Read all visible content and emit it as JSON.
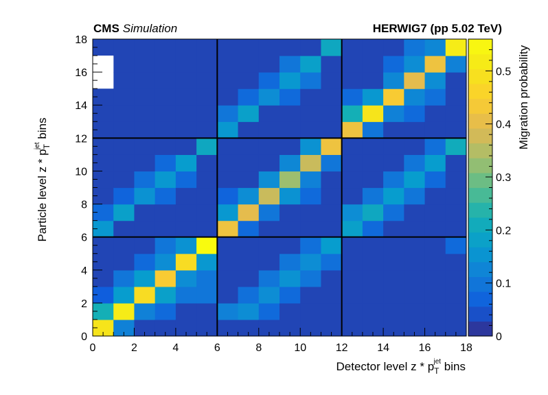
{
  "chart_data": {
    "type": "heatmap",
    "header_left_bold": "CMS",
    "header_left_italic": "Simulation",
    "header_right": "HERWIG7 (pp 5.02 TeV)",
    "xlabel": {
      "prefix": "Detector level z * p",
      "sub": "T",
      "sup": "jet",
      "suffix": " bins"
    },
    "ylabel": {
      "prefix": "Particle level z * p",
      "sub": "T",
      "sup": "jet",
      "suffix": " bins"
    },
    "colorbar_label": "Migration probability",
    "xlim": [
      0,
      18
    ],
    "ylim": [
      0,
      18
    ],
    "zlim": [
      0,
      0.56
    ],
    "xticks": [
      "0",
      "2",
      "4",
      "6",
      "8",
      "10",
      "12",
      "14",
      "16",
      "18"
    ],
    "yticks": [
      "0",
      "2",
      "4",
      "6",
      "8",
      "10",
      "12",
      "14",
      "16",
      "18"
    ],
    "zticks": [
      "0",
      "0.1",
      "0.2",
      "0.3",
      "0.4",
      "0.5"
    ],
    "block_boundaries": [
      6,
      12
    ],
    "empty_cells": [
      [
        0,
        15
      ],
      [
        0,
        16
      ]
    ],
    "background_value": 0.03,
    "cells": [
      [
        0,
        0,
        0.5
      ],
      [
        1,
        0,
        0.12
      ],
      [
        0,
        1,
        0.22
      ],
      [
        1,
        1,
        0.52
      ],
      [
        2,
        1,
        0.12
      ],
      [
        3,
        1,
        0.08
      ],
      [
        0,
        2,
        0.06
      ],
      [
        1,
        2,
        0.17
      ],
      [
        2,
        2,
        0.48
      ],
      [
        3,
        2,
        0.18
      ],
      [
        4,
        2,
        0.1
      ],
      [
        5,
        2,
        0.1
      ],
      [
        1,
        3,
        0.1
      ],
      [
        2,
        3,
        0.17
      ],
      [
        3,
        3,
        0.44
      ],
      [
        4,
        3,
        0.14
      ],
      [
        5,
        3,
        0.1
      ],
      [
        2,
        4,
        0.08
      ],
      [
        3,
        4,
        0.14
      ],
      [
        4,
        4,
        0.48
      ],
      [
        5,
        4,
        0.16
      ],
      [
        3,
        5,
        0.1
      ],
      [
        4,
        5,
        0.15
      ],
      [
        5,
        5,
        0.56
      ],
      [
        6,
        1,
        0.12
      ],
      [
        7,
        1,
        0.14
      ],
      [
        8,
        1,
        0.08
      ],
      [
        7,
        2,
        0.09
      ],
      [
        8,
        2,
        0.14
      ],
      [
        9,
        2,
        0.08
      ],
      [
        8,
        3,
        0.1
      ],
      [
        9,
        3,
        0.15
      ],
      [
        10,
        3,
        0.1
      ],
      [
        9,
        4,
        0.1
      ],
      [
        10,
        4,
        0.14
      ],
      [
        11,
        4,
        0.09
      ],
      [
        10,
        5,
        0.09
      ],
      [
        11,
        5,
        0.17
      ],
      [
        17,
        5,
        0.08
      ],
      [
        0,
        6,
        0.16
      ],
      [
        0,
        7,
        0.08
      ],
      [
        1,
        7,
        0.18
      ],
      [
        1,
        8,
        0.07
      ],
      [
        2,
        8,
        0.15
      ],
      [
        3,
        8,
        0.08
      ],
      [
        2,
        9,
        0.09
      ],
      [
        3,
        9,
        0.16
      ],
      [
        4,
        9,
        0.08
      ],
      [
        3,
        10,
        0.08
      ],
      [
        4,
        10,
        0.17
      ],
      [
        5,
        11,
        0.2
      ],
      [
        6,
        6,
        0.42
      ],
      [
        7,
        6,
        0.08
      ],
      [
        6,
        7,
        0.16
      ],
      [
        7,
        7,
        0.4
      ],
      [
        8,
        7,
        0.1
      ],
      [
        6,
        8,
        0.07
      ],
      [
        7,
        8,
        0.14
      ],
      [
        8,
        8,
        0.37
      ],
      [
        9,
        8,
        0.15
      ],
      [
        10,
        8,
        0.08
      ],
      [
        8,
        9,
        0.14
      ],
      [
        9,
        9,
        0.33
      ],
      [
        10,
        9,
        0.12
      ],
      [
        9,
        10,
        0.13
      ],
      [
        10,
        10,
        0.37
      ],
      [
        11,
        10,
        0.1
      ],
      [
        10,
        11,
        0.15
      ],
      [
        11,
        11,
        0.42
      ],
      [
        12,
        6,
        0.18
      ],
      [
        13,
        6,
        0.08
      ],
      [
        12,
        7,
        0.14
      ],
      [
        13,
        7,
        0.2
      ],
      [
        14,
        7,
        0.09
      ],
      [
        13,
        8,
        0.1
      ],
      [
        14,
        8,
        0.17
      ],
      [
        15,
        8,
        0.1
      ],
      [
        14,
        9,
        0.1
      ],
      [
        15,
        9,
        0.17
      ],
      [
        16,
        9,
        0.08
      ],
      [
        15,
        10,
        0.1
      ],
      [
        16,
        10,
        0.17
      ],
      [
        16,
        11,
        0.09
      ],
      [
        17,
        11,
        0.21
      ],
      [
        6,
        12,
        0.16
      ],
      [
        6,
        13,
        0.1
      ],
      [
        7,
        13,
        0.18
      ],
      [
        7,
        14,
        0.08
      ],
      [
        8,
        14,
        0.14
      ],
      [
        9,
        14,
        0.08
      ],
      [
        8,
        15,
        0.08
      ],
      [
        9,
        15,
        0.16
      ],
      [
        10,
        15,
        0.1
      ],
      [
        9,
        16,
        0.1
      ],
      [
        10,
        16,
        0.18
      ],
      [
        11,
        17,
        0.2
      ],
      [
        12,
        12,
        0.42
      ],
      [
        13,
        12,
        0.1
      ],
      [
        12,
        13,
        0.22
      ],
      [
        13,
        13,
        0.5
      ],
      [
        14,
        13,
        0.12
      ],
      [
        15,
        13,
        0.08
      ],
      [
        12,
        14,
        0.08
      ],
      [
        13,
        14,
        0.16
      ],
      [
        14,
        14,
        0.44
      ],
      [
        15,
        14,
        0.13
      ],
      [
        16,
        14,
        0.09
      ],
      [
        14,
        15,
        0.13
      ],
      [
        15,
        15,
        0.4
      ],
      [
        16,
        15,
        0.14
      ],
      [
        14,
        16,
        0.08
      ],
      [
        15,
        16,
        0.14
      ],
      [
        16,
        16,
        0.42
      ],
      [
        17,
        16,
        0.12
      ],
      [
        15,
        17,
        0.1
      ],
      [
        16,
        17,
        0.13
      ],
      [
        17,
        17,
        0.52
      ]
    ]
  }
}
